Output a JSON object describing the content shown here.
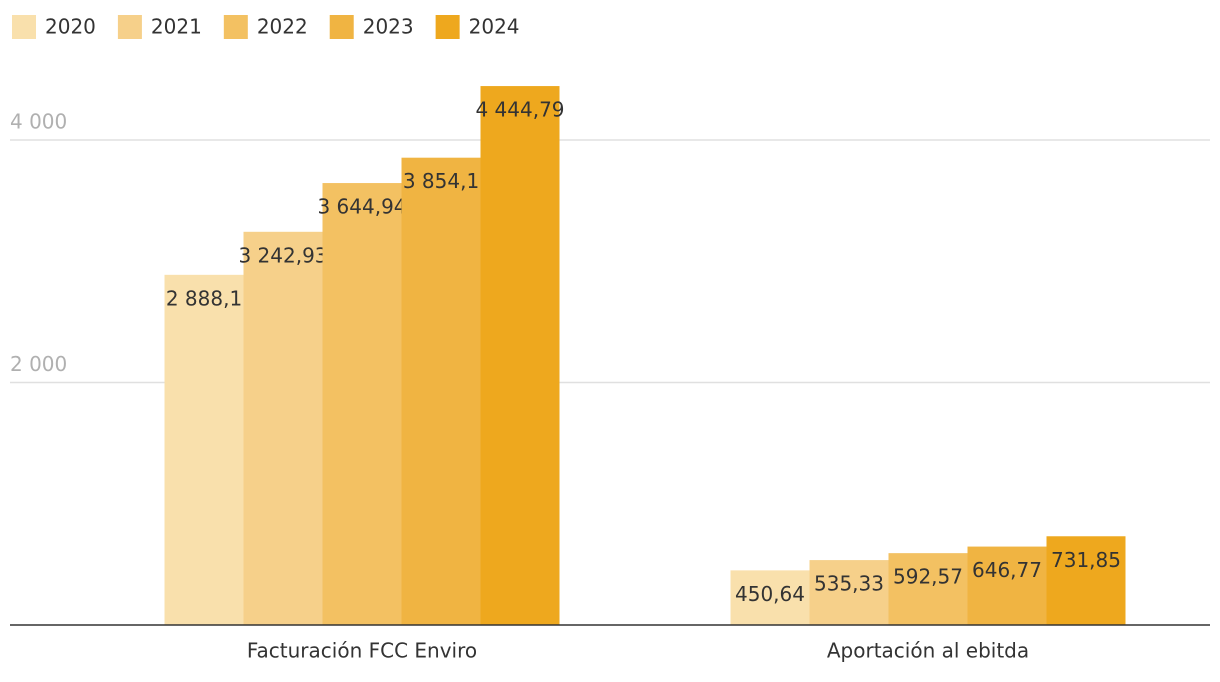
{
  "chart_data": {
    "type": "bar",
    "categories": [
      "Facturación FCC Enviro",
      "Aportación al ebitda"
    ],
    "series": [
      {
        "name": "2020",
        "color": "#f9e0ac",
        "values": [
          2888.1,
          450.64
        ],
        "value_labels": [
          "2 888,1",
          "450,64"
        ]
      },
      {
        "name": "2021",
        "color": "#f6d08a",
        "values": [
          3242.93,
          535.33
        ],
        "value_labels": [
          "3 242,93",
          "535,33"
        ]
      },
      {
        "name": "2022",
        "color": "#f3c162",
        "values": [
          3644.94,
          592.57
        ],
        "value_labels": [
          "3 644,94",
          "592,57"
        ]
      },
      {
        "name": "2023",
        "color": "#f0b442",
        "values": [
          3854.1,
          646.77
        ],
        "value_labels": [
          "3 854,1",
          "646,77"
        ]
      },
      {
        "name": "2024",
        "color": "#eea81e",
        "values": [
          4444.79,
          731.85
        ],
        "value_labels": [
          "4 444,79",
          "731,85"
        ]
      }
    ],
    "ylim": [
      0,
      4600
    ],
    "yticks": [
      {
        "value": 2000,
        "label": "2 000"
      },
      {
        "value": 4000,
        "label": "4 000"
      }
    ],
    "grid": true,
    "legend": "top-left"
  }
}
